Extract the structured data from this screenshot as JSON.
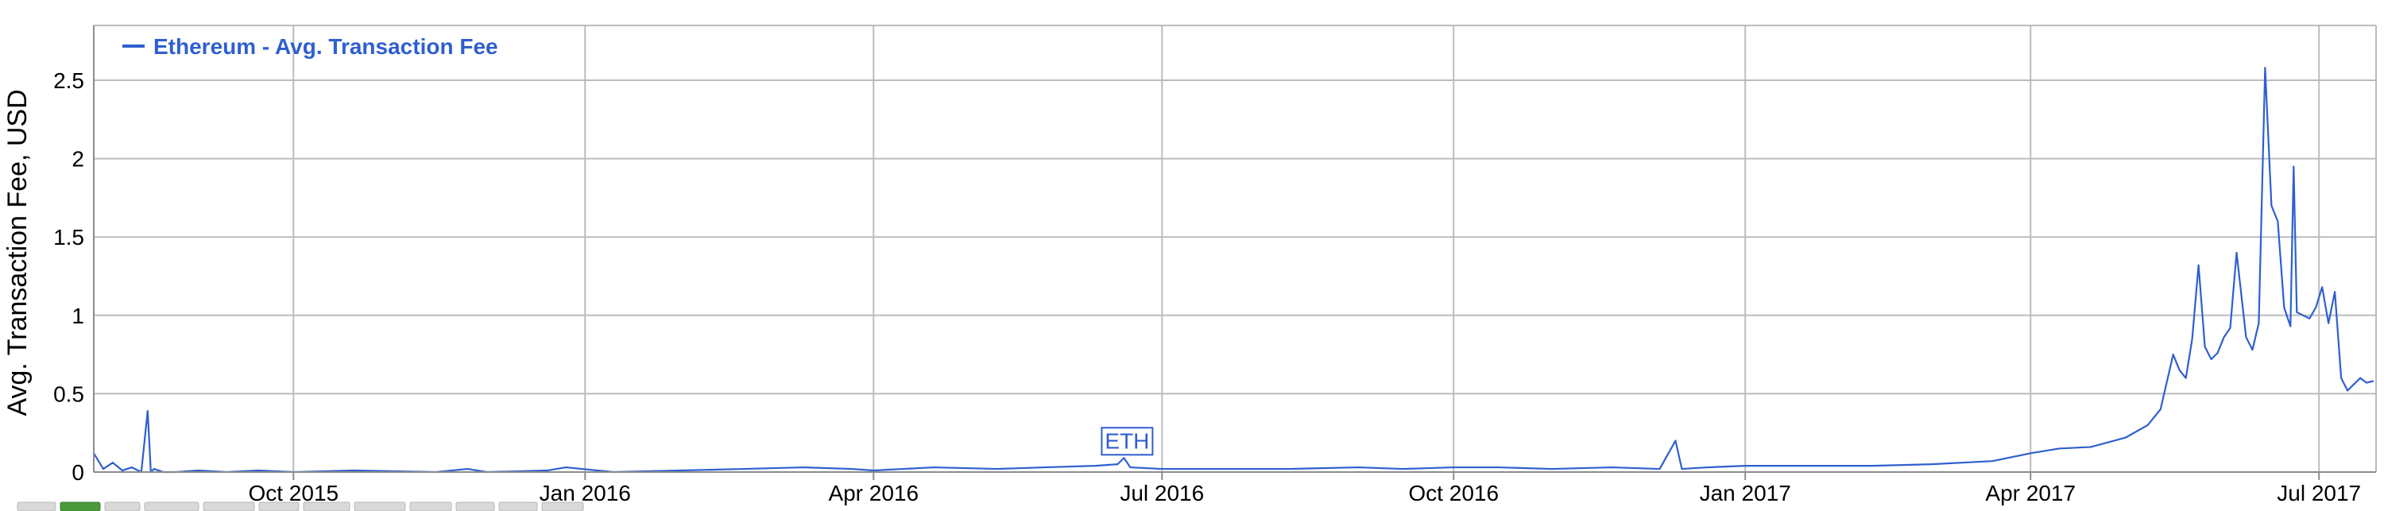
{
  "colors": {
    "series": "#2f5fcf",
    "grid": "#bcbcbc",
    "axis": "#8c8c8c",
    "text": "#000000",
    "tab": "#d9d9d9",
    "tab_active": "#4a9a3a"
  },
  "chart_data": {
    "type": "line",
    "title": "",
    "xlabel": "",
    "ylabel": "Avg. Transaction Fee, USD",
    "ylim": [
      0,
      2.85
    ],
    "xlim": [
      "2015-07-30",
      "2017-07-19"
    ],
    "y_ticks": [
      0,
      0.5,
      1,
      1.5,
      2,
      2.5
    ],
    "y_tick_labels": [
      "0",
      "0.5",
      "1",
      "1.5",
      "2",
      "2.5"
    ],
    "x_ticks": [
      "2015-10-01",
      "2016-01-01",
      "2016-04-01",
      "2016-07-01",
      "2016-10-01",
      "2017-01-01",
      "2017-04-01",
      "2017-07-01"
    ],
    "x_tick_labels": [
      "Oct 2015",
      "Jan 2016",
      "Apr 2016",
      "Jul 2016",
      "Oct 2016",
      "Jan 2017",
      "Apr 2017",
      "Jul 2017"
    ],
    "grid": true,
    "legend": {
      "placement": "top-left",
      "label": "Ethereum - Avg. Transaction Fee"
    },
    "annotations": [
      {
        "text": "ETH",
        "x": "2016-06-19",
        "y": 0.09
      }
    ],
    "series": [
      {
        "name": "Ethereum - Avg. Transaction Fee",
        "x": [
          "2015-07-30",
          "2015-08-02",
          "2015-08-05",
          "2015-08-08",
          "2015-08-11",
          "2015-08-14",
          "2015-08-16",
          "2015-08-17",
          "2015-08-18",
          "2015-08-21",
          "2015-08-25",
          "2015-09-01",
          "2015-09-10",
          "2015-09-20",
          "2015-10-01",
          "2015-10-20",
          "2015-11-15",
          "2015-11-25",
          "2015-12-01",
          "2015-12-20",
          "2015-12-26",
          "2016-01-10",
          "2016-01-31",
          "2016-02-20",
          "2016-03-10",
          "2016-03-25",
          "2016-04-01",
          "2016-04-20",
          "2016-05-10",
          "2016-05-25",
          "2016-06-10",
          "2016-06-17",
          "2016-06-19",
          "2016-06-21",
          "2016-07-01",
          "2016-07-20",
          "2016-08-10",
          "2016-09-01",
          "2016-09-15",
          "2016-10-01",
          "2016-10-15",
          "2016-11-01",
          "2016-11-20",
          "2016-12-05",
          "2016-12-10",
          "2016-12-12",
          "2016-12-20",
          "2017-01-01",
          "2017-01-20",
          "2017-02-10",
          "2017-03-01",
          "2017-03-20",
          "2017-04-01",
          "2017-04-10",
          "2017-04-20",
          "2017-05-01",
          "2017-05-08",
          "2017-05-12",
          "2017-05-16",
          "2017-05-18",
          "2017-05-20",
          "2017-05-22",
          "2017-05-24",
          "2017-05-26",
          "2017-05-28",
          "2017-05-30",
          "2017-06-01",
          "2017-06-03",
          "2017-06-05",
          "2017-06-08",
          "2017-06-10",
          "2017-06-12",
          "2017-06-14",
          "2017-06-16",
          "2017-06-18",
          "2017-06-20",
          "2017-06-22",
          "2017-06-23",
          "2017-06-24",
          "2017-06-26",
          "2017-06-28",
          "2017-06-30",
          "2017-07-02",
          "2017-07-04",
          "2017-07-06",
          "2017-07-08",
          "2017-07-10",
          "2017-07-12",
          "2017-07-14",
          "2017-07-16",
          "2017-07-18"
        ],
        "values": [
          0.12,
          0.02,
          0.06,
          0.01,
          0.03,
          0.0,
          0.39,
          0.0,
          0.02,
          0.0,
          0.0,
          0.01,
          0.0,
          0.01,
          0.0,
          0.01,
          0.0,
          0.02,
          0.0,
          0.01,
          0.03,
          0.0,
          0.01,
          0.02,
          0.03,
          0.02,
          0.01,
          0.03,
          0.02,
          0.03,
          0.04,
          0.05,
          0.09,
          0.03,
          0.02,
          0.02,
          0.02,
          0.03,
          0.02,
          0.03,
          0.03,
          0.02,
          0.03,
          0.02,
          0.2,
          0.02,
          0.03,
          0.04,
          0.04,
          0.04,
          0.05,
          0.07,
          0.12,
          0.15,
          0.16,
          0.22,
          0.3,
          0.4,
          0.75,
          0.65,
          0.6,
          0.85,
          1.32,
          0.8,
          0.72,
          0.76,
          0.86,
          0.92,
          1.4,
          0.86,
          0.78,
          0.95,
          2.58,
          1.7,
          1.6,
          1.05,
          0.93,
          1.95,
          1.02,
          1.0,
          0.98,
          1.05,
          1.18,
          0.95,
          1.15,
          0.6,
          0.52,
          0.56,
          0.6,
          0.57,
          0.58
        ]
      }
    ]
  },
  "navigation": {
    "tabs": 12,
    "active_index": 1
  }
}
